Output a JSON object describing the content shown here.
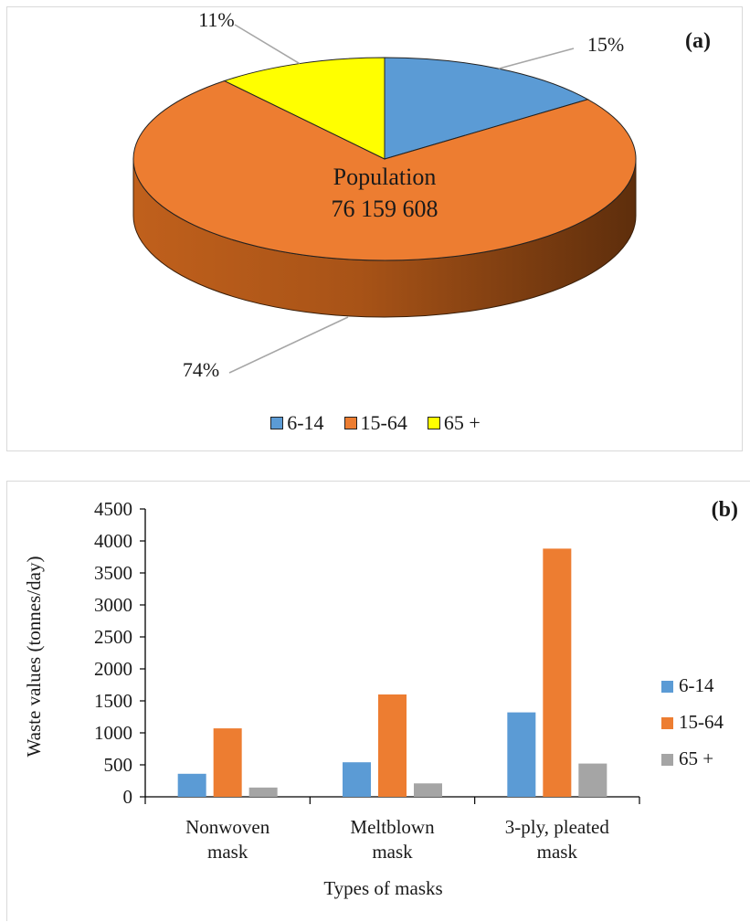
{
  "chart_data": [
    {
      "type": "pie",
      "panel_label": "(a)",
      "center_text": [
        "Population",
        "76 159 608"
      ],
      "labels": [
        "6-14",
        "15-64",
        "65 +"
      ],
      "values": [
        15,
        74,
        11
      ],
      "value_labels": [
        "15%",
        "74%",
        "11%"
      ],
      "colors": [
        "#5b9bd5",
        "#ed7d31",
        "#ffff00"
      ],
      "legend": [
        "6-14",
        "15-64",
        "65 +"
      ],
      "legend_position": "bottom"
    },
    {
      "type": "bar",
      "panel_label": "(b)",
      "categories": [
        [
          "Nonwoven",
          "mask"
        ],
        [
          "Meltblown",
          "mask"
        ],
        [
          "3-ply, pleated",
          "mask"
        ]
      ],
      "series": [
        {
          "name": "6-14",
          "values": [
            360,
            540,
            1320
          ],
          "color": "#5b9bd5"
        },
        {
          "name": "15-64",
          "values": [
            1070,
            1600,
            3880
          ],
          "color": "#ed7d31"
        },
        {
          "name": "65 +",
          "values": [
            145,
            210,
            520
          ],
          "color": "#a5a5a5"
        }
      ],
      "xlabel": "Types of masks",
      "ylabel": "Waste values (tonnes/day)",
      "ylim": [
        0,
        4500
      ],
      "yticks": [
        "0",
        "500",
        "1000",
        "1500",
        "2000",
        "2500",
        "3000",
        "3500",
        "4000",
        "4500"
      ],
      "grid": false,
      "legend_position": "right"
    }
  ]
}
